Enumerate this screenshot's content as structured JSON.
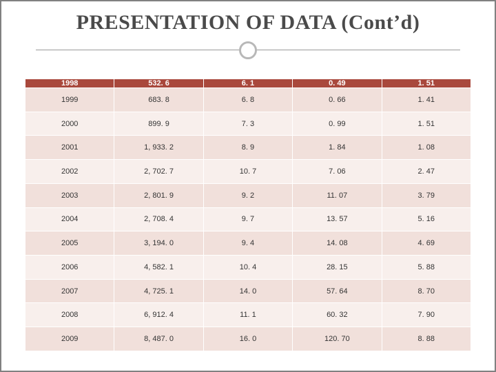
{
  "title": "PRESENTATION OF DATA (Cont’d)",
  "table": {
    "type": "table",
    "header_bg": "#a9483c",
    "header_text_color": "#ffffff",
    "row_bg_even": "#f1e0db",
    "row_bg_odd": "#f8efec",
    "border_color": "#ffffff",
    "cell_font_size": 11,
    "header_font_size": 11,
    "header_font_weight": "bold",
    "column_count": 5,
    "header": [
      "1998",
      "532. 6",
      "6. 1",
      "0. 49",
      "1. 51"
    ],
    "rows": [
      [
        "1999",
        "683. 8",
        "6. 8",
        "0. 66",
        "1. 41"
      ],
      [
        "2000",
        "899. 9",
        "7. 3",
        "0. 99",
        "1. 51"
      ],
      [
        "2001",
        "1, 933. 2",
        "8. 9",
        "1. 84",
        "1. 08"
      ],
      [
        "2002",
        "2, 702. 7",
        "10. 7",
        "7. 06",
        "2. 47"
      ],
      [
        "2003",
        "2, 801. 9",
        "9. 2",
        "11. 07",
        "3. 79"
      ],
      [
        "2004",
        "2, 708. 4",
        "9. 7",
        "13. 57",
        "5. 16"
      ],
      [
        "2005",
        "3, 194. 0",
        "9. 4",
        "14. 08",
        "4. 69"
      ],
      [
        "2006",
        "4, 582. 1",
        "10. 4",
        "28. 15",
        "5. 88"
      ],
      [
        "2007",
        "4, 725. 1",
        "14. 0",
        "57. 64",
        "8. 70"
      ],
      [
        "2008",
        "6, 912. 4",
        "11. 1",
        "60. 32",
        "7. 90"
      ],
      [
        "2009",
        "8, 487. 0",
        "16. 0",
        "120. 70",
        "8. 88"
      ]
    ]
  }
}
